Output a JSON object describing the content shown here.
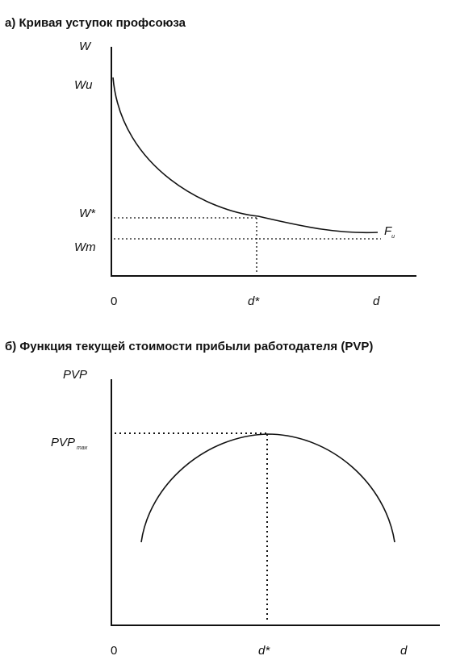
{
  "panel_a": {
    "title": "а) Кривая уступок профсоюза",
    "y_axis_label": "W",
    "y_labels": {
      "wu": "Wu",
      "wstar": "W*",
      "wm": "Wm"
    },
    "x_labels": {
      "zero": "0",
      "dstar": "d*",
      "d": "d"
    },
    "curve_label_main": "F",
    "curve_label_sub": "u"
  },
  "panel_b": {
    "title": "б) Функция текущей стоимости прибыли работодателя (PVP)",
    "y_axis_label": "PVP",
    "y_max_label_main": "PVP",
    "y_max_label_sub": "max",
    "x_labels": {
      "zero": "0",
      "dstar": "d*",
      "d": "d"
    }
  }
}
